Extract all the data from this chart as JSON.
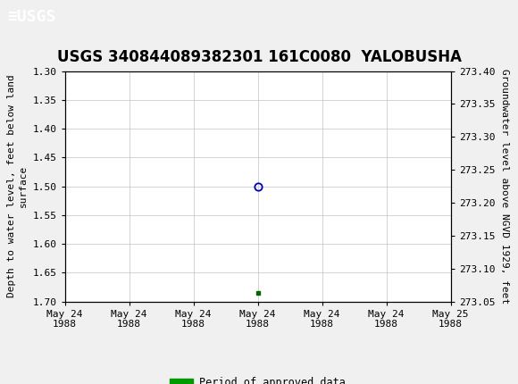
{
  "title": "USGS 340844089382301 161C0080  YALOBUSHA",
  "ylabel_left": "Depth to water level, feet below land\nsurface",
  "ylabel_right": "Groundwater level above NGVD 1929, feet",
  "ylim_left": [
    1.7,
    1.3
  ],
  "ylim_right": [
    273.05,
    273.4
  ],
  "yticks_left": [
    1.3,
    1.35,
    1.4,
    1.45,
    1.5,
    1.55,
    1.6,
    1.65,
    1.7
  ],
  "yticks_right": [
    273.4,
    273.35,
    273.3,
    273.25,
    273.2,
    273.15,
    273.1,
    273.05
  ],
  "xtick_labels": [
    "May 24\n1988",
    "May 24\n1988",
    "May 24\n1988",
    "May 24\n1988",
    "May 24\n1988",
    "May 24\n1988",
    "May 25\n1988"
  ],
  "data_point_x": 3.0,
  "data_point_y_circle": 1.5,
  "data_point_y_square": 1.685,
  "circle_color": "#0000bb",
  "square_color": "#006600",
  "header_color": "#1a6b3c",
  "grid_color": "#cccccc",
  "background_color": "#f0f0f0",
  "legend_label": "Period of approved data",
  "legend_color": "#009900",
  "xmin": 0,
  "xmax": 6,
  "header_text": "USGS",
  "title_fontsize": 12,
  "tick_fontsize": 8,
  "ylabel_fontsize": 8
}
